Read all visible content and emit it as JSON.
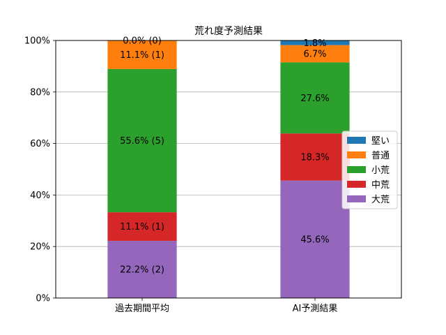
{
  "chart_data": {
    "type": "bar",
    "stacked": true,
    "title": "荒れ度予測結果",
    "xlabel": "",
    "ylabel": "",
    "ylim": [
      0,
      100
    ],
    "y_tick_format": "percent",
    "y_ticks": [
      "0%",
      "20%",
      "40%",
      "60%",
      "80%",
      "100%"
    ],
    "grid": "y",
    "legend_position": "right",
    "categories": [
      "過去期間平均",
      "AI予測結果"
    ],
    "series": [
      {
        "name": "大荒",
        "color": "#9467bd",
        "values": [
          22.2,
          45.6
        ],
        "labels": [
          "22.2% (2)",
          "45.6%"
        ]
      },
      {
        "name": "中荒",
        "color": "#d62728",
        "values": [
          11.1,
          18.3
        ],
        "labels": [
          "11.1% (1)",
          "18.3%"
        ]
      },
      {
        "name": "小荒",
        "color": "#2ca02c",
        "values": [
          55.6,
          27.6
        ],
        "labels": [
          "55.6% (5)",
          "27.6%"
        ]
      },
      {
        "name": "普通",
        "color": "#ff7f0e",
        "values": [
          11.1,
          6.7
        ],
        "labels": [
          "11.1% (1)",
          "6.7%"
        ]
      },
      {
        "name": "堅い",
        "color": "#1f77b4",
        "values": [
          0.0,
          1.8
        ],
        "labels": [
          "0.0% (0)",
          "1.8%"
        ]
      }
    ],
    "legend_order": [
      "堅い",
      "普通",
      "小荒",
      "中荒",
      "大荒"
    ]
  }
}
